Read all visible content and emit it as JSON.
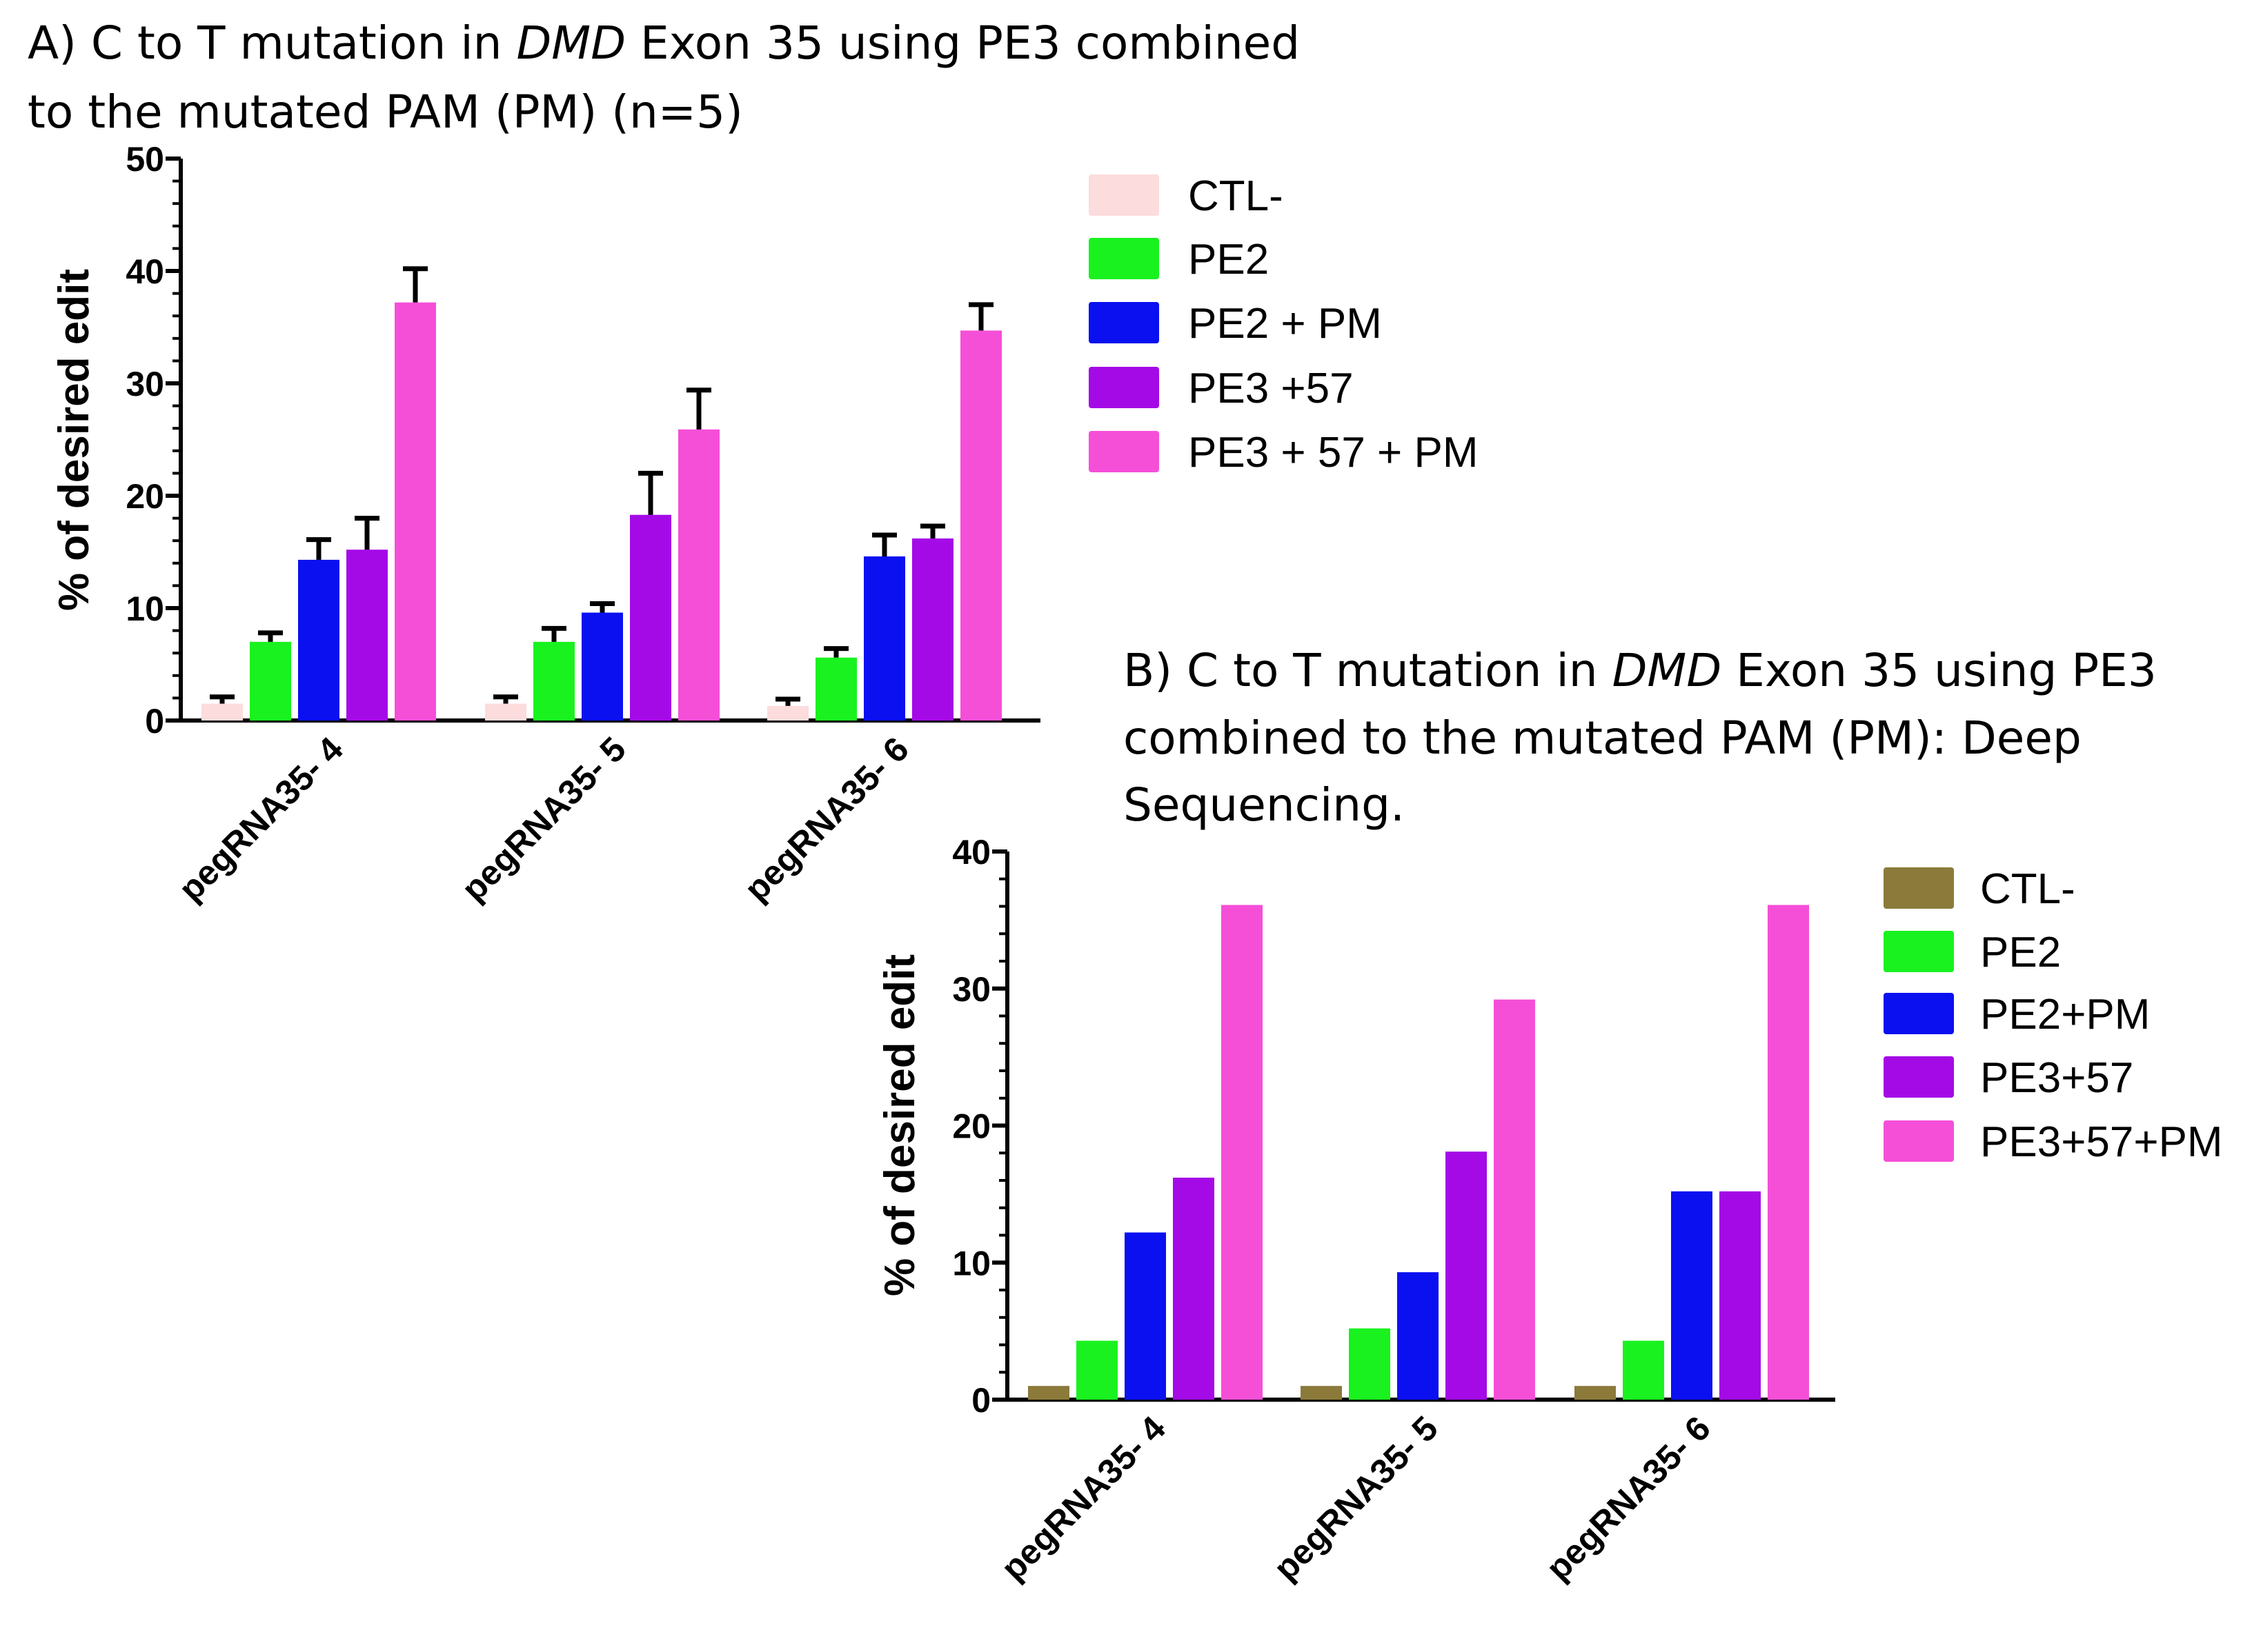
{
  "colors": {
    "CTL-A": "#fcdcdc",
    "CTL-B": "#8b7a3a",
    "PE2": "#19f21f",
    "PE2PM": "#0a10f0",
    "PE3": "#a40ae6",
    "PE3PM": "#f54fd8",
    "axis": "#000000"
  },
  "chart_data": [
    {
      "type": "bar",
      "title_parts": [
        "A) C to T mutation in ",
        "DMD",
        " Exon 35 using PE3 combined",
        "to the mutated PAM (PM) (n=5)"
      ],
      "categories": [
        "pegRNA35- 4",
        "pegRNA35- 5",
        "pegRNA35- 6"
      ],
      "ylabel": "% of desired edit",
      "ylim": [
        0,
        50
      ],
      "yticks": [
        "0",
        "10",
        "20",
        "30",
        "40",
        "50"
      ],
      "legend_position": "right",
      "series": [
        {
          "name": "CTL-",
          "color": "#fcdcdc",
          "values": [
            1.5,
            1.5,
            1.3
          ],
          "errors": [
            0.6,
            0.6,
            0.6
          ]
        },
        {
          "name": "PE2",
          "color": "#19f21f",
          "values": [
            7.0,
            7.0,
            5.6
          ],
          "errors": [
            0.8,
            1.2,
            0.8
          ]
        },
        {
          "name": "PE2 + PM",
          "color": "#0a10f0",
          "values": [
            14.3,
            9.6,
            14.6
          ],
          "errors": [
            1.8,
            0.8,
            1.9
          ]
        },
        {
          "name": "PE3 +57",
          "color": "#a40ae6",
          "values": [
            15.2,
            18.3,
            16.2
          ],
          "errors": [
            2.8,
            3.7,
            1.1
          ]
        },
        {
          "name": "PE3 + 57 + PM",
          "color": "#f54fd8",
          "values": [
            37.2,
            25.9,
            34.7
          ],
          "errors": [
            3.0,
            3.5,
            2.3
          ]
        }
      ]
    },
    {
      "type": "bar",
      "title_parts": [
        "B) C to T mutation in ",
        "DMD",
        " Exon 35 using PE3",
        "combined to the mutated PAM (PM): Deep",
        "Sequencing."
      ],
      "categories": [
        "pegRNA35- 4",
        "pegRNA35- 5",
        "pegRNA35- 6"
      ],
      "ylabel": "% of desired edit",
      "ylim": [
        0,
        40
      ],
      "yticks": [
        "0",
        "10",
        "20",
        "30",
        "40"
      ],
      "legend_position": "right",
      "series": [
        {
          "name": "CTL-",
          "color": "#8b7a3a",
          "values": [
            1.0,
            1.0,
            1.0
          ]
        },
        {
          "name": "PE2",
          "color": "#19f21f",
          "values": [
            4.3,
            5.2,
            4.3
          ]
        },
        {
          "name": "PE2+PM",
          "color": "#0a10f0",
          "values": [
            12.2,
            9.3,
            15.2
          ]
        },
        {
          "name": "PE3+57",
          "color": "#a40ae6",
          "values": [
            16.2,
            18.1,
            15.2
          ]
        },
        {
          "name": "PE3+57+PM",
          "color": "#f54fd8",
          "values": [
            36.1,
            29.2,
            36.1
          ]
        }
      ]
    }
  ]
}
